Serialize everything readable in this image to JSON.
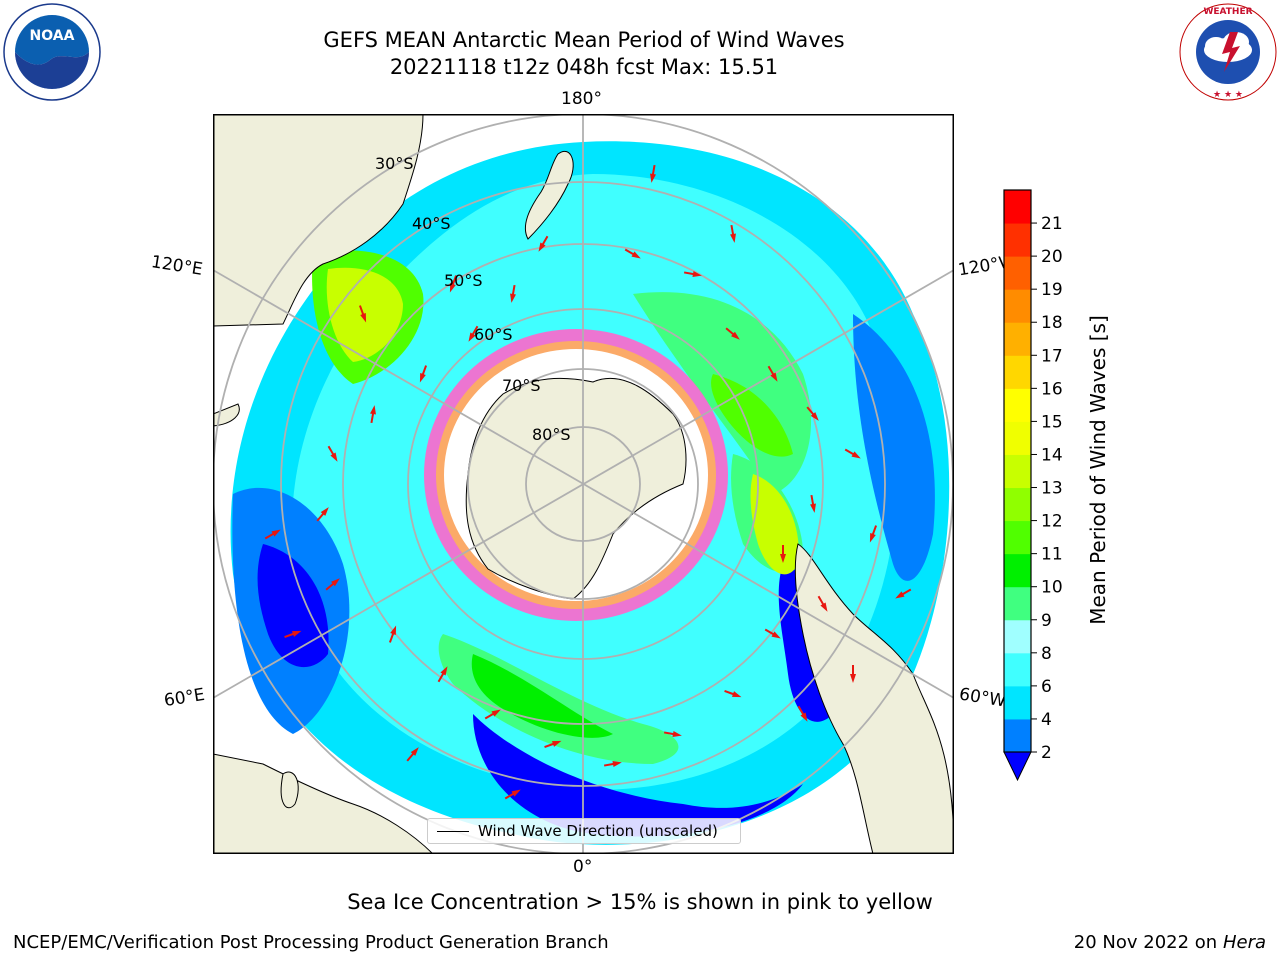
{
  "title_line1": "GEFS MEAN Antarctic Mean Period of Wind Waves",
  "title_line2": "20221118 t12z 048h fcst   Max: 15.51",
  "logos": {
    "noaa": {
      "text": "NOAA",
      "ring_text": "NATIONAL OCEANIC AND ATMOSPHERIC ADMINISTRATION · U.S. DEPARTMENT OF COMMERCE"
    },
    "nws": {
      "ring_text": "NATIONAL WEATHER SERVICE"
    }
  },
  "map": {
    "projection": "south-polar-stereographic",
    "lon_labels": {
      "top": "180°",
      "upper_left": "120°E",
      "upper_right": "120°W",
      "lower_left": "60°E",
      "lower_right": "60°W",
      "bottom": "0°"
    },
    "lat_labels": [
      "30°S",
      "40°S",
      "50°S",
      "60°S",
      "70°S",
      "80°S"
    ],
    "legend": "Wind Wave Direction (unscaled)",
    "colors": {
      "land": "#efefdb",
      "ocean_no_data": "#ffffff",
      "arrow": "#e8170f",
      "grid": "#b0b0b0"
    }
  },
  "colorbar": {
    "title": "Mean Period of Wind Waves [s]",
    "ticks": [
      "2",
      "4",
      "6",
      "8",
      "9",
      "10",
      "11",
      "12",
      "13",
      "14",
      "15",
      "16",
      "17",
      "18",
      "19",
      "20",
      "21"
    ],
    "bin_colors": [
      "#0080ff",
      "#00e5ff",
      "#40ffff",
      "#a0ffff",
      "#40ff80",
      "#00f000",
      "#50ff00",
      "#90ff00",
      "#c8ff00",
      "#f0ff00",
      "#ffff00",
      "#ffd700",
      "#ffb000",
      "#ff8c00",
      "#ff6000",
      "#ff3000",
      "#ff0000"
    ],
    "under_color": "#0000ff"
  },
  "sea_ice_note": "Sea Ice Concentration > 15% is shown in pink to yellow",
  "footer_left": "NCEP/EMC/Verification Post Processing Product Generation Branch",
  "footer_date": "20 Nov 2022 on",
  "footer_machine": "Hera"
}
